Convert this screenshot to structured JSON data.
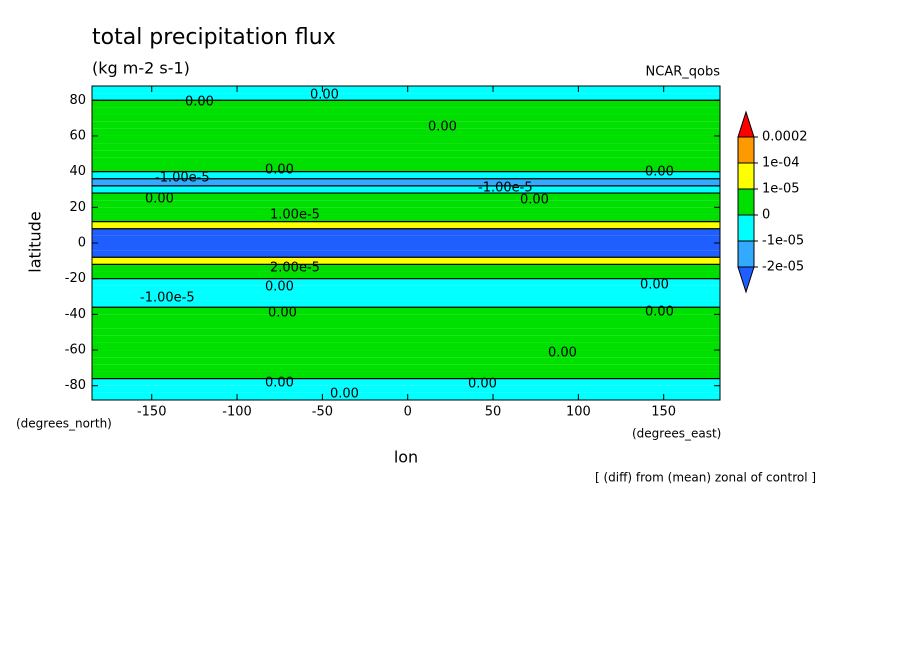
{
  "chart_data": {
    "type": "contour",
    "title": "total precipitation flux",
    "subtitle": "(kg m-2 s-1)",
    "dataset": "NCAR_qobs",
    "x_label": "lon",
    "y_label": "latitude",
    "x_units": "(degrees_east)",
    "y_units": "(degrees_north)",
    "footnote": "[ (diff) from (mean) zonal of control ]",
    "xlim": [
      -185,
      183
    ],
    "ylim": [
      -88,
      88
    ],
    "xticks": [
      -150,
      -100,
      -50,
      0,
      50,
      100,
      150
    ],
    "yticks": [
      80,
      60,
      40,
      20,
      0,
      -20,
      -40,
      -60,
      -80
    ],
    "y": [
      86,
      82,
      78,
      74,
      70,
      66,
      62,
      58,
      54,
      50,
      46,
      42,
      38,
      34,
      30,
      26,
      22,
      18,
      14,
      10,
      6,
      2,
      -2,
      -6,
      -10,
      -14,
      -18,
      -22,
      -26,
      -30,
      -34,
      -38,
      -42,
      -46,
      -50,
      -54,
      -58,
      -62,
      -66,
      -70,
      -74,
      -78,
      -82,
      -86
    ],
    "values": [
      -5e-06,
      -5e-06,
      3e-06,
      3e-06,
      3e-06,
      3e-06,
      3e-06,
      3e-06,
      3e-06,
      3e-06,
      3e-06,
      3e-06,
      -5e-06,
      -1.2e-05,
      -5e-06,
      3e-06,
      3e-06,
      3e-06,
      5e-06,
      5e-05,
      -3e-05,
      -3e-05,
      -3e-05,
      -3e-05,
      5e-05,
      3e-06,
      3e-06,
      -5e-06,
      -5e-06,
      -5e-06,
      -5e-06,
      3e-06,
      3e-06,
      3e-06,
      3e-06,
      3e-06,
      3e-06,
      3e-06,
      3e-06,
      3e-06,
      3e-06,
      -5e-06,
      -5e-06,
      -5e-06
    ],
    "levels": [
      {
        "value": -2e-05,
        "label": "-2e-05"
      },
      {
        "value": -1e-05,
        "label": "-1e-05"
      },
      0,
      {
        "value": 1e-05,
        "label": "1e-05"
      },
      {
        "value": 0.0001,
        "label": "1e-04"
      },
      0.0002
    ],
    "colors": [
      "#1f5fff",
      "#33aaff",
      "#00ffff",
      "#00e000",
      "#ffff00",
      "#ff9900",
      "#ff0000"
    ],
    "contour_labels": [
      "0.00",
      "0.00",
      "0.00",
      "0.00",
      "-1.00e-5",
      "-1.00e-5",
      "0.00",
      "0.00",
      "0.00",
      "1.00e-5",
      "2.00e-5",
      "-1.00e-5",
      "0.00",
      "0.00",
      "0.00",
      "0.00",
      "0.00",
      "0.00",
      "0.00",
      "0.00"
    ]
  }
}
